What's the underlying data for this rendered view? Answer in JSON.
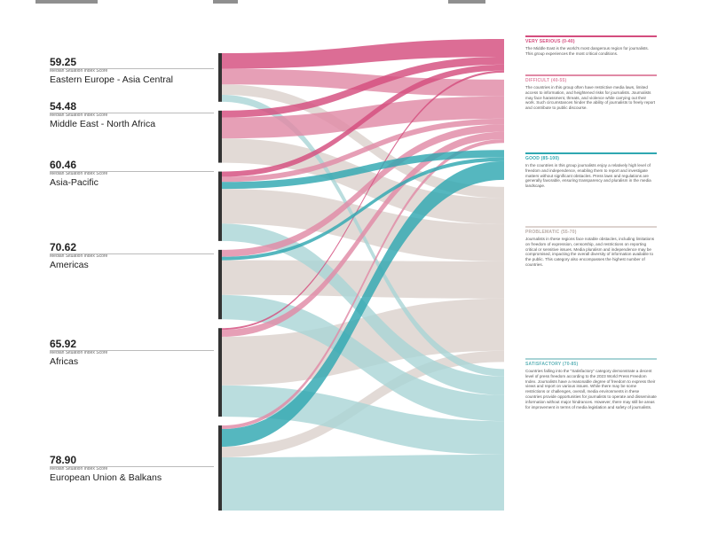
{
  "colors": {
    "very_serious": "#d44d7e",
    "difficult": "#e08aa6",
    "good": "#2fa7b1",
    "problematic": "#ddd3cf",
    "satisfactory": "#a9d4d6",
    "node_bar": "#333333"
  },
  "chart_data": {
    "type": "sankey",
    "title": "",
    "measure_label": "Median Situation Index Score",
    "regions": [
      {
        "id": "eeca",
        "name": "Eastern Europe - Asia Central",
        "score": "59.25",
        "weight": 2.8
      },
      {
        "id": "mena",
        "name": "Middle East - North Africa",
        "score": "54.48",
        "weight": 3.0
      },
      {
        "id": "ap",
        "name": "Asia-Pacific",
        "score": "60.46",
        "weight": 4.0
      },
      {
        "id": "am",
        "name": "Americas",
        "score": "70.62",
        "weight": 4.0
      },
      {
        "id": "af",
        "name": "Africas",
        "score": "65.92",
        "weight": 5.1
      },
      {
        "id": "eub",
        "name": "European Union & Balkans",
        "score": "78.90",
        "weight": 4.9
      }
    ],
    "categories": [
      {
        "id": "vs",
        "title": "VERY SERIOUS (0-40)",
        "weight": 1.8,
        "body": "The Middle East is the world's most dangerous region for journalists. This group experiences the most critical conditions."
      },
      {
        "id": "df",
        "title": "DIFFICULT (40-55)",
        "weight": 3.4,
        "body": "The countries in this group often have restrictive media laws, limited access to information, and heightened risks for journalists. Journalists may face harassment, threats, and violence while carrying out their work. Such circumstances hinder the ability of journalists to freely report and contribute to public discourse."
      },
      {
        "id": "gd",
        "title": "GOOD (85-100)",
        "weight": 1.6,
        "body": "In the countries in this group journalists enjoy a relatively high level of freedom and independence, enabling them to report and investigate matters without significant obstacles. Press laws and regulations are generally favorable, ensuring transparency and pluralism in the media landscape."
      },
      {
        "id": "pr",
        "title": "PROBLEMATIC (55-70)",
        "weight": 9.4,
        "body": "Journalists in these regions face notable obstacles, including limitations on freedom of expression, censorship, and restrictions on reporting critical or sensitive issues. Media pluralism and independence may be compromised, impacting the overall diversity of information available to the public. This category also encompasses the highest number of countries."
      },
      {
        "id": "sa",
        "title": "SATISFACTORY (70-85)",
        "weight": 7.6,
        "body": "Countries falling into the \"Satisfactory\" category demonstrate a decent level of press freedom according to the 2023 World Press Freedom Index. Journalists have a reasonable degree of freedom to express their views and report on various issues. While there may be some restrictions or challenges, overall, media environments in these countries provide opportunities for journalists to operate and disseminate information without major hindrances. However, there may still be areas for improvement in terms of media legislation and safety of journalists."
      }
    ],
    "flows": [
      [
        "eeca",
        "vs",
        0.9
      ],
      [
        "eeca",
        "df",
        0.9
      ],
      [
        "eeca",
        "pr",
        0.6
      ],
      [
        "eeca",
        "sa",
        0.4
      ],
      [
        "mena",
        "vs",
        0.4
      ],
      [
        "mena",
        "df",
        1.2
      ],
      [
        "mena",
        "pr",
        1.4
      ],
      [
        "ap",
        "vs",
        0.3
      ],
      [
        "ap",
        "df",
        0.3
      ],
      [
        "ap",
        "gd",
        0.4
      ],
      [
        "ap",
        "pr",
        2.0
      ],
      [
        "ap",
        "sa",
        1.0
      ],
      [
        "am",
        "df",
        0.4
      ],
      [
        "am",
        "gd",
        0.2
      ],
      [
        "am",
        "pr",
        2.0
      ],
      [
        "am",
        "sa",
        1.4
      ],
      [
        "af",
        "vs",
        0.1
      ],
      [
        "af",
        "df",
        0.4
      ],
      [
        "af",
        "pr",
        2.8
      ],
      [
        "af",
        "sa",
        1.8
      ],
      [
        "eub",
        "df",
        0.2
      ],
      [
        "eub",
        "gd",
        1.0
      ],
      [
        "eub",
        "pr",
        0.6
      ],
      [
        "eub",
        "sa",
        3.0
      ]
    ]
  }
}
